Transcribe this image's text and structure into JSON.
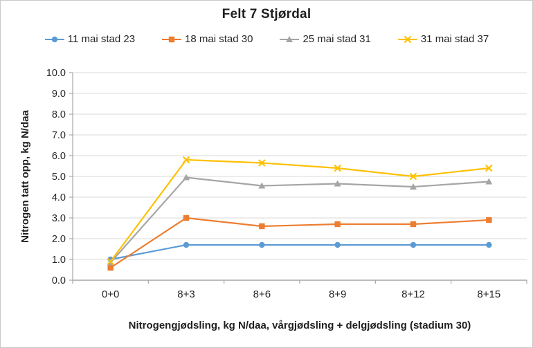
{
  "chart_data": {
    "type": "line",
    "title": "Felt 7 Stjørdal",
    "xlabel": "Nitrogengjødsling, kg N/daa, vårgjødsling + delgjødsling (stadium 30)",
    "ylabel": "Nitrogen tatt opp, kg N/daa",
    "categories": [
      "0+0",
      "8+3",
      "8+6",
      "8+9",
      "8+12",
      "8+15"
    ],
    "series": [
      {
        "name": "11 mai stad 23",
        "color": "#5B9BD5",
        "marker": "circle",
        "values": [
          1.0,
          1.7,
          1.7,
          1.7,
          1.7,
          1.7
        ]
      },
      {
        "name": "18 mai stad 30",
        "color": "#ED7D31",
        "marker": "square",
        "values": [
          0.6,
          3.0,
          2.6,
          2.7,
          2.7,
          2.9
        ]
      },
      {
        "name": "25 mai stad 31",
        "color": "#A5A5A5",
        "marker": "triangle",
        "values": [
          0.85,
          4.95,
          4.55,
          4.65,
          4.5,
          4.75
        ]
      },
      {
        "name": "31 mai stad 37",
        "color": "#FFC000",
        "marker": "x",
        "values": [
          0.9,
          5.8,
          5.65,
          5.4,
          5.0,
          5.4
        ]
      }
    ],
    "ylim": [
      0,
      10
    ],
    "y_tick_step": 1.0,
    "y_tick_labels": [
      "0.0",
      "1.0",
      "2.0",
      "3.0",
      "4.0",
      "5.0",
      "6.0",
      "7.0",
      "8.0",
      "9.0",
      "10.0"
    ],
    "grid": true,
    "legend_position": "top",
    "gridline_color": "#D9D9D9",
    "axis_color": "#A6A6A6",
    "tick_label_color": "#262626"
  }
}
